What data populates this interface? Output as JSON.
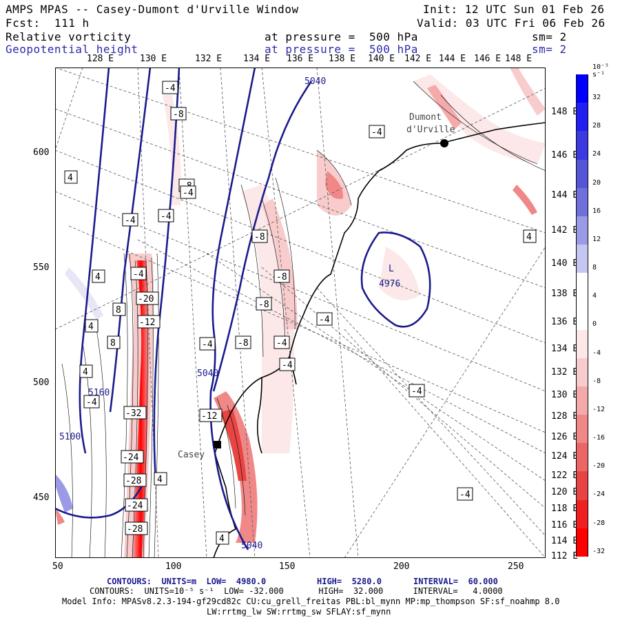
{
  "header": {
    "title": "AMPS MPAS -- Casey-Dumont d'Urville Window",
    "init": "Init: 12 UTC Sun 01 Feb 26",
    "fcst": "Fcst:  111 h",
    "valid": "Valid: 03 UTC Fri 06 Feb 26",
    "field1": "Relative vorticity",
    "field1_level": "at pressure =  500 hPa",
    "field1_sm": "sm= 2",
    "field2": "Geopotential height",
    "field2_level": "at pressure =  500 hPa",
    "field2_sm": "sm= 2"
  },
  "longitude_labels_top": [
    "128 E",
    "130 E",
    "132 E",
    "134 E",
    "136 E",
    "138 E",
    "140 E",
    "142 E",
    "144 E",
    "146 E",
    "148 E"
  ],
  "longitude_labels_right": [
    "148 E",
    "146 E",
    "144 E",
    "142 E",
    "140 E",
    "138 E",
    "136 E",
    "134 E",
    "132 E",
    "130 E",
    "128 E",
    "126 E",
    "124 E",
    "122 E",
    "120 E",
    "118 E",
    "116 E",
    "114 E",
    "112 E"
  ],
  "x_axis_ticks": [
    "50",
    "100",
    "150",
    "200",
    "250"
  ],
  "y_axis_ticks": [
    "600",
    "550",
    "500",
    "450"
  ],
  "stations": [
    {
      "name": "Dumont d'Urville"
    },
    {
      "name": "Casey"
    }
  ],
  "height_labels": [
    "5040",
    "5040",
    "5040",
    "5100",
    "5160",
    "L",
    "4976"
  ],
  "vorticity_labels": [
    "-4",
    "-8",
    "-4",
    "-8",
    "-4",
    "-4",
    "-4",
    "-20",
    "-12",
    "-32",
    "-24",
    "-28",
    "-24",
    "-28",
    "-12",
    "-8",
    "-8",
    "-8",
    "-8",
    "-4",
    "-4",
    "-4",
    "-4",
    "-4",
    "-4",
    "-4",
    "4",
    "4",
    "4",
    "8",
    "8",
    "4",
    "-4",
    "4",
    "4",
    "4"
  ],
  "colorbar": {
    "unit": "10⁻⁵ s⁻¹",
    "labels": [
      "32",
      "28",
      "24",
      "20",
      "16",
      "12",
      "8",
      "4",
      "0",
      "-4",
      "-8",
      "-12",
      "-16",
      "-20",
      "-24",
      "-28",
      "-32"
    ],
    "colors": [
      "#0000ff",
      "#2020f0",
      "#3a3ae0",
      "#5555d8",
      "#7070dc",
      "#9a9ae6",
      "#c6c6f2",
      "#ffffff",
      "#ffffff",
      "#fce8e8",
      "#f8cccc",
      "#f4aaaa",
      "#f08888",
      "#ec6666",
      "#e84444",
      "#f02020",
      "#ff0000"
    ]
  },
  "footer": {
    "line1_a": "CONTOURS:  UNITS=m  LOW=  4980.0",
    "line1_b": "HIGH=  5280.0",
    "line1_c": "INTERVAL=  60.000",
    "line2": "CONTOURS:  UNITS=10⁻⁵ s⁻¹  LOW= -32.000       HIGH=  32.000      INTERVAL=   4.0000",
    "line3": "Model Info: MPASv8.2.3-194-gf29cd82c CU:cu_grell_freitas PBL:bl_mynn MP:mp_thompson SF:sf_noahmp 8.0",
    "line4": "LW:rrtmg_lw SW:rrtmg_sw SFLAY:sf_mynn"
  }
}
